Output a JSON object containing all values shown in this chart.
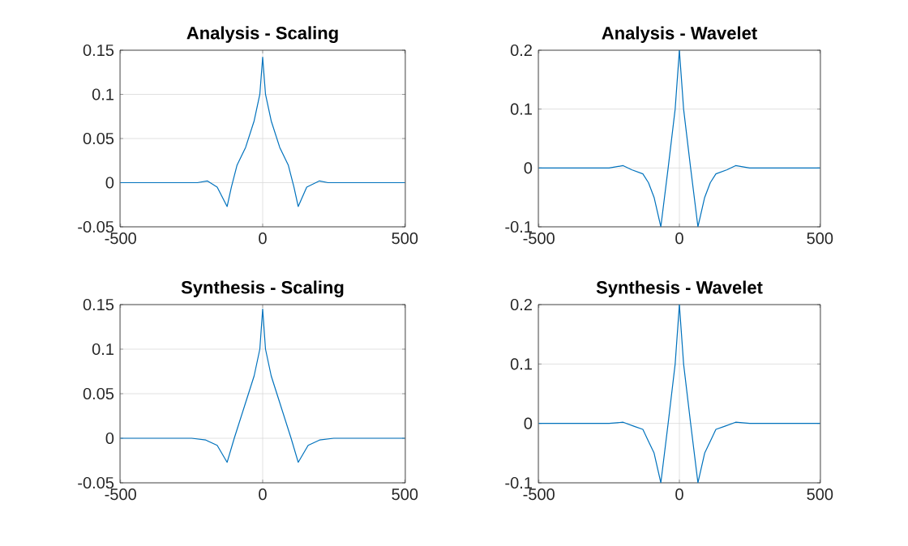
{
  "chart_data": [
    {
      "type": "line",
      "title": "Analysis - Scaling",
      "color": "#0072bd",
      "grid": true,
      "xlim": [
        -502,
        502
      ],
      "ylim": [
        -0.05,
        0.15
      ],
      "xticks": [
        -500,
        0,
        500
      ],
      "yticks": [
        -0.05,
        0,
        0.05,
        0.1,
        0.15
      ],
      "x": [
        -500,
        -230,
        -195,
        -160,
        -125,
        -110,
        -90,
        -60,
        -30,
        -10,
        0,
        10,
        30,
        60,
        90,
        110,
        125,
        155,
        200,
        230,
        500
      ],
      "values": [
        0,
        0,
        0.002,
        -0.005,
        -0.027,
        -0.005,
        0.02,
        0.04,
        0.07,
        0.1,
        0.142,
        0.1,
        0.07,
        0.04,
        0.02,
        -0.005,
        -0.027,
        -0.005,
        0.002,
        0,
        0
      ]
    },
    {
      "type": "line",
      "title": "Analysis - Wavelet",
      "color": "#0072bd",
      "grid": true,
      "xlim": [
        -502,
        502
      ],
      "ylim": [
        -0.1,
        0.2
      ],
      "xticks": [
        -500,
        0,
        500
      ],
      "yticks": [
        -0.1,
        0,
        0.1,
        0.2
      ],
      "x": [
        -500,
        -250,
        -200,
        -170,
        -130,
        -110,
        -90,
        -66,
        -40,
        -15,
        0,
        15,
        40,
        66,
        90,
        110,
        130,
        170,
        200,
        250,
        500
      ],
      "values": [
        0,
        0,
        0.004,
        -0.003,
        -0.01,
        -0.025,
        -0.05,
        -0.1,
        0,
        0.1,
        0.2,
        0.1,
        0,
        -0.1,
        -0.05,
        -0.025,
        -0.01,
        -0.003,
        0.004,
        0,
        0
      ]
    },
    {
      "type": "line",
      "title": "Synthesis - Scaling",
      "color": "#0072bd",
      "grid": true,
      "xlim": [
        -502,
        502
      ],
      "ylim": [
        -0.05,
        0.15
      ],
      "xticks": [
        -500,
        0,
        500
      ],
      "yticks": [
        -0.05,
        0,
        0.05,
        0.1,
        0.15
      ],
      "x": [
        -500,
        -250,
        -200,
        -160,
        -125,
        -100,
        -60,
        -30,
        -10,
        0,
        10,
        30,
        60,
        100,
        125,
        160,
        200,
        250,
        500
      ],
      "values": [
        0,
        0,
        -0.002,
        -0.008,
        -0.027,
        0,
        0.04,
        0.07,
        0.1,
        0.145,
        0.1,
        0.07,
        0.04,
        0,
        -0.027,
        -0.008,
        -0.002,
        0,
        0
      ]
    },
    {
      "type": "line",
      "title": "Synthesis - Wavelet",
      "color": "#0072bd",
      "grid": true,
      "xlim": [
        -502,
        502
      ],
      "ylim": [
        -0.1,
        0.2
      ],
      "xticks": [
        -500,
        0,
        500
      ],
      "yticks": [
        -0.1,
        0,
        0.1,
        0.2
      ],
      "x": [
        -500,
        -250,
        -200,
        -160,
        -130,
        -110,
        -90,
        -66,
        -40,
        -15,
        0,
        15,
        40,
        66,
        90,
        110,
        130,
        160,
        200,
        250,
        500
      ],
      "values": [
        0,
        0,
        0.002,
        -0.005,
        -0.01,
        -0.03,
        -0.05,
        -0.1,
        0,
        0.1,
        0.2,
        0.1,
        0,
        -0.1,
        -0.05,
        -0.03,
        -0.01,
        -0.005,
        0.002,
        0,
        0
      ]
    }
  ]
}
